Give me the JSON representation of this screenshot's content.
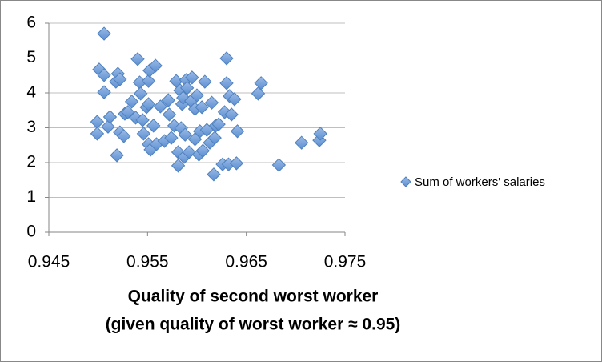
{
  "chart_data": {
    "type": "scatter",
    "xlabel": [
      "Quality of second worst worker",
      "(given quality of worst worker ≈ 0.95)"
    ],
    "xlim": [
      0.945,
      0.975
    ],
    "xticks": [
      0.945,
      0.955,
      0.965,
      0.975
    ],
    "ylim": [
      0,
      6
    ],
    "yticks": [
      0,
      1,
      2,
      3,
      4,
      5,
      6
    ],
    "grid": true,
    "legend": "right",
    "series": [
      {
        "name": "Sum of workers' salaries",
        "color": "#4f81bd",
        "x": [
          0.9506,
          0.9501,
          0.9506,
          0.9506,
          0.9499,
          0.9499,
          0.951,
          0.9512,
          0.9518,
          0.952,
          0.9522,
          0.9519,
          0.9522,
          0.9526,
          0.9527,
          0.953,
          0.9534,
          0.954,
          0.9538,
          0.9542,
          0.9543,
          0.9545,
          0.9546,
          0.9549,
          0.9551,
          0.9551,
          0.9552,
          0.9551,
          0.9553,
          0.9556,
          0.9558,
          0.9559,
          0.9563,
          0.9567,
          0.9571,
          0.9572,
          0.9574,
          0.9577,
          0.9579,
          0.9581,
          0.9581,
          0.9583,
          0.9584,
          0.9585,
          0.9586,
          0.9587,
          0.9588,
          0.9589,
          0.959,
          0.9592,
          0.9594,
          0.9595,
          0.9598,
          0.9598,
          0.96,
          0.9602,
          0.9603,
          0.9605,
          0.9606,
          0.9608,
          0.961,
          0.9613,
          0.9615,
          0.9617,
          0.9618,
          0.9619,
          0.9622,
          0.9626,
          0.9628,
          0.963,
          0.963,
          0.9632,
          0.9633,
          0.9635,
          0.9638,
          0.964,
          0.9641,
          0.9662,
          0.9665,
          0.9683,
          0.9706,
          0.9724,
          0.9725
        ],
        "values": [
          5.7,
          4.67,
          4.51,
          4.02,
          3.17,
          2.83,
          3.03,
          3.31,
          4.32,
          4.55,
          4.39,
          2.21,
          2.87,
          2.76,
          3.4,
          3.45,
          3.75,
          4.97,
          3.29,
          4.3,
          3.98,
          3.22,
          2.83,
          3.59,
          3.68,
          4.34,
          4.64,
          2.53,
          2.37,
          3.06,
          4.78,
          2.53,
          3.61,
          2.62,
          3.79,
          3.38,
          2.71,
          3.06,
          4.34,
          2.3,
          1.91,
          4.07,
          2.99,
          3.68,
          3.86,
          2.16,
          2.8,
          4.37,
          4.14,
          2.3,
          3.77,
          4.44,
          3.54,
          2.67,
          3.93,
          2.23,
          2.9,
          3.59,
          2.34,
          4.32,
          2.94,
          2.57,
          3.72,
          1.66,
          2.71,
          3.06,
          3.1,
          1.95,
          3.45,
          4.28,
          4.99,
          1.95,
          3.91,
          3.38,
          3.82,
          1.98,
          2.9,
          3.98,
          4.28,
          1.93,
          2.57,
          2.64,
          2.83
        ]
      }
    ]
  }
}
